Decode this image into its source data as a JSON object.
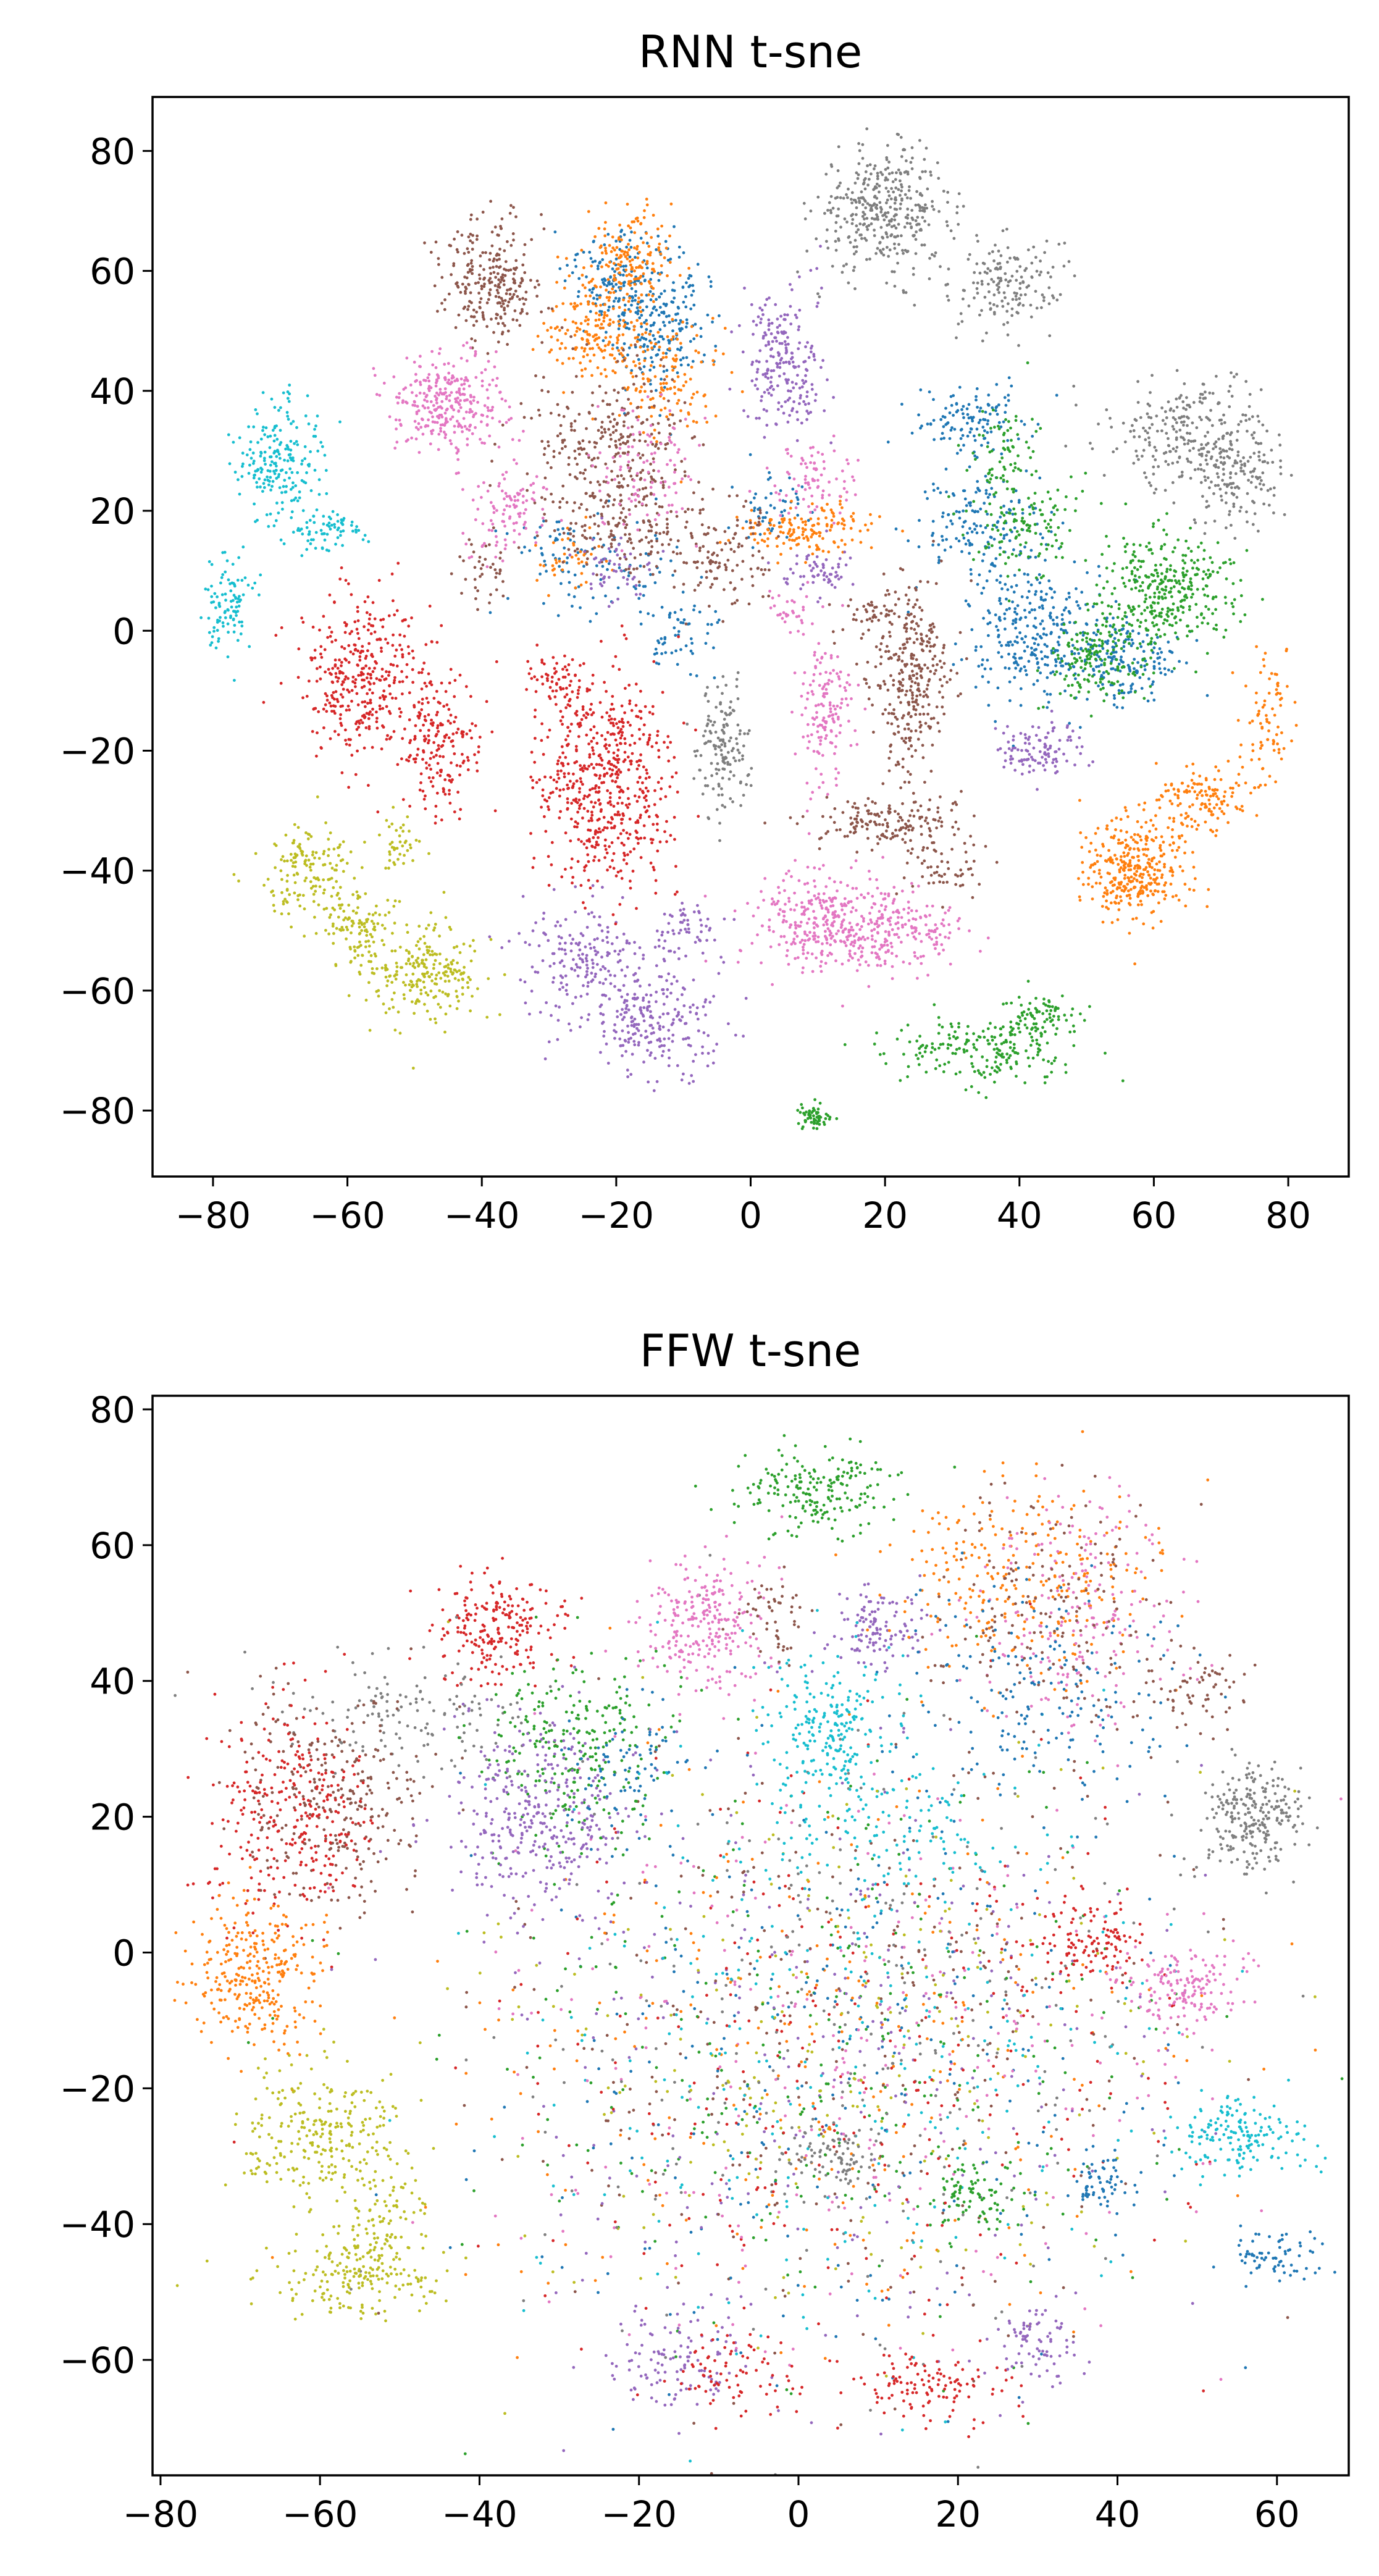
{
  "chart_data": [
    {
      "type": "scatter",
      "title": "RNN t-sne",
      "xlim": [
        -89,
        89
      ],
      "ylim": [
        -91,
        89
      ],
      "xticks": [
        -80,
        -60,
        -40,
        -20,
        0,
        20,
        40,
        60,
        80
      ],
      "yticks": [
        -80,
        -60,
        -40,
        -20,
        0,
        20,
        40,
        60,
        80
      ],
      "xtick_labels": [
        "−80",
        "−60",
        "−40",
        "−20",
        "0",
        "20",
        "40",
        "60",
        "80"
      ],
      "ytick_labels": [
        "−80",
        "−60",
        "−40",
        "−20",
        "0",
        "20",
        "40",
        "60",
        "80"
      ],
      "grid": false,
      "legend": "none",
      "marker_size_px": 2.4,
      "clusters": [
        {
          "color": "#7f7f7f",
          "cx": 20,
          "cy": 70,
          "sx": 5,
          "sy": 5,
          "n": 380
        },
        {
          "color": "#7f7f7f",
          "cx": 38,
          "cy": 58,
          "sx": 4,
          "sy": 4,
          "n": 160
        },
        {
          "color": "#7f7f7f",
          "cx": 66,
          "cy": 33,
          "sx": 6,
          "sy": 5,
          "n": 270
        },
        {
          "color": "#7f7f7f",
          "cx": 73,
          "cy": 25,
          "sx": 3,
          "sy": 4,
          "n": 120
        },
        {
          "color": "#7f7f7f",
          "cx": -4,
          "cy": -20,
          "sx": 2,
          "sy": 5,
          "n": 150
        },
        {
          "color": "#1f77b4",
          "cx": -20,
          "cy": 58,
          "sx": 4,
          "sy": 5,
          "n": 160
        },
        {
          "color": "#1f77b4",
          "cx": -13,
          "cy": 52,
          "sx": 4,
          "sy": 6,
          "n": 200
        },
        {
          "color": "#1f77b4",
          "cx": 33,
          "cy": 35,
          "sx": 4,
          "sy": 3,
          "n": 120
        },
        {
          "color": "#1f77b4",
          "cx": 34,
          "cy": 18,
          "sx": 5,
          "sy": 4,
          "n": 150
        },
        {
          "color": "#1f77b4",
          "cx": 42,
          "cy": 0,
          "sx": 5,
          "sy": 6,
          "n": 300
        },
        {
          "color": "#1f77b4",
          "cx": 56,
          "cy": -5,
          "sx": 4,
          "sy": 3,
          "n": 160
        },
        {
          "color": "#1f77b4",
          "cx": -22,
          "cy": 10,
          "sx": 6,
          "sy": 5,
          "n": 80
        },
        {
          "color": "#1f77b4",
          "cx": -10,
          "cy": 0,
          "sx": 3,
          "sy": 3,
          "n": 60
        },
        {
          "color": "#1f77b4",
          "cx": 2,
          "cy": 20,
          "sx": 3,
          "sy": 3,
          "n": 50
        },
        {
          "color": "#1f77b4",
          "cx": -30,
          "cy": 15,
          "sx": 3,
          "sy": 3,
          "n": 30
        },
        {
          "color": "#ff7f0e",
          "cx": -18,
          "cy": 62,
          "sx": 3,
          "sy": 4,
          "n": 150
        },
        {
          "color": "#ff7f0e",
          "cx": -22,
          "cy": 50,
          "sx": 4,
          "sy": 5,
          "n": 200
        },
        {
          "color": "#ff7f0e",
          "cx": -12,
          "cy": 42,
          "sx": 4,
          "sy": 5,
          "n": 120
        },
        {
          "color": "#ff7f0e",
          "cx": 8,
          "cy": 17,
          "sx": 5,
          "sy": 2,
          "n": 150
        },
        {
          "color": "#ff7f0e",
          "cx": -27,
          "cy": 12,
          "sx": 3,
          "sy": 3,
          "n": 40
        },
        {
          "color": "#ff7f0e",
          "cx": 57,
          "cy": -40,
          "sx": 4,
          "sy": 4,
          "n": 350
        },
        {
          "color": "#ff7f0e",
          "cx": 68,
          "cy": -28,
          "sx": 4,
          "sy": 3,
          "n": 140
        },
        {
          "color": "#ff7f0e",
          "cx": 77,
          "cy": -15,
          "sx": 2,
          "sy": 5,
          "n": 80
        },
        {
          "color": "#8c564b",
          "cx": -38,
          "cy": 58,
          "sx": 4,
          "sy": 5,
          "n": 260
        },
        {
          "color": "#8c564b",
          "cx": -22,
          "cy": 32,
          "sx": 6,
          "sy": 6,
          "n": 250
        },
        {
          "color": "#8c564b",
          "cx": -18,
          "cy": 18,
          "sx": 5,
          "sy": 5,
          "n": 180
        },
        {
          "color": "#8c564b",
          "cx": -5,
          "cy": 12,
          "sx": 4,
          "sy": 5,
          "n": 120
        },
        {
          "color": "#8c564b",
          "cx": -40,
          "cy": 10,
          "sx": 2,
          "sy": 3,
          "n": 40
        },
        {
          "color": "#8c564b",
          "cx": 24,
          "cy": -8,
          "sx": 3,
          "sy": 8,
          "n": 320
        },
        {
          "color": "#8c564b",
          "cx": 18,
          "cy": 2,
          "sx": 3,
          "sy": 2,
          "n": 40
        },
        {
          "color": "#8c564b",
          "cx": 20,
          "cy": -32,
          "sx": 6,
          "sy": 2,
          "n": 160
        },
        {
          "color": "#8c564b",
          "cx": 29,
          "cy": -39,
          "sx": 3,
          "sy": 3,
          "n": 60
        },
        {
          "color": "#9467bd",
          "cx": 5,
          "cy": 45,
          "sx": 3,
          "sy": 6,
          "n": 220
        },
        {
          "color": "#9467bd",
          "cx": -25,
          "cy": -55,
          "sx": 5,
          "sy": 5,
          "n": 180
        },
        {
          "color": "#9467bd",
          "cx": -15,
          "cy": -65,
          "sx": 5,
          "sy": 5,
          "n": 240
        },
        {
          "color": "#9467bd",
          "cx": -10,
          "cy": -50,
          "sx": 3,
          "sy": 3,
          "n": 60
        },
        {
          "color": "#9467bd",
          "cx": 43,
          "cy": -20,
          "sx": 3,
          "sy": 2,
          "n": 110
        },
        {
          "color": "#9467bd",
          "cx": 10,
          "cy": 10,
          "sx": 3,
          "sy": 2,
          "n": 60
        },
        {
          "color": "#9467bd",
          "cx": -20,
          "cy": 10,
          "sx": 3,
          "sy": 3,
          "n": 50
        },
        {
          "color": "#e377c2",
          "cx": -45,
          "cy": 38,
          "sx": 4,
          "sy": 4,
          "n": 300
        },
        {
          "color": "#e377c2",
          "cx": -36,
          "cy": 20,
          "sx": 3,
          "sy": 4,
          "n": 100
        },
        {
          "color": "#e377c2",
          "cx": -16,
          "cy": 28,
          "sx": 4,
          "sy": 5,
          "n": 100
        },
        {
          "color": "#e377c2",
          "cx": 9,
          "cy": 25,
          "sx": 3,
          "sy": 3,
          "n": 80
        },
        {
          "color": "#e377c2",
          "cx": 11,
          "cy": -14,
          "sx": 2,
          "sy": 6,
          "n": 150
        },
        {
          "color": "#e377c2",
          "cx": 12,
          "cy": -49,
          "sx": 6,
          "sy": 4,
          "n": 380
        },
        {
          "color": "#e377c2",
          "cx": 24,
          "cy": -50,
          "sx": 4,
          "sy": 3,
          "n": 120
        },
        {
          "color": "#e377c2",
          "cx": 6,
          "cy": 3,
          "sx": 2,
          "sy": 2,
          "n": 30
        },
        {
          "color": "#2ca02c",
          "cx": 37,
          "cy": 30,
          "sx": 3,
          "sy": 4,
          "n": 70
        },
        {
          "color": "#2ca02c",
          "cx": 41,
          "cy": 17,
          "sx": 4,
          "sy": 4,
          "n": 120
        },
        {
          "color": "#2ca02c",
          "cx": 62,
          "cy": 7,
          "sx": 5,
          "sy": 5,
          "n": 350
        },
        {
          "color": "#2ca02c",
          "cx": 52,
          "cy": -5,
          "sx": 4,
          "sy": 4,
          "n": 160
        },
        {
          "color": "#2ca02c",
          "cx": 35,
          "cy": -70,
          "sx": 7,
          "sy": 3,
          "n": 200
        },
        {
          "color": "#2ca02c",
          "cx": 43,
          "cy": -64,
          "sx": 3,
          "sy": 2,
          "n": 80
        },
        {
          "color": "#2ca02c",
          "cx": 9,
          "cy": -81,
          "sx": 1.5,
          "sy": 1.2,
          "n": 60
        },
        {
          "color": "#17becf",
          "cx": -70,
          "cy": 28,
          "sx": 3,
          "sy": 5,
          "n": 200
        },
        {
          "color": "#17becf",
          "cx": -63,
          "cy": 17,
          "sx": 3,
          "sy": 2,
          "n": 80
        },
        {
          "color": "#17becf",
          "cx": -78,
          "cy": 4,
          "sx": 2,
          "sy": 4,
          "n": 100
        },
        {
          "color": "#d62728",
          "cx": -57,
          "cy": -8,
          "sx": 5,
          "sy": 7,
          "n": 380
        },
        {
          "color": "#d62728",
          "cx": -46,
          "cy": -20,
          "sx": 3,
          "sy": 6,
          "n": 170
        },
        {
          "color": "#d62728",
          "cx": -22,
          "cy": -25,
          "sx": 5,
          "sy": 9,
          "n": 580
        },
        {
          "color": "#d62728",
          "cx": -28,
          "cy": -7,
          "sx": 3,
          "sy": 2,
          "n": 50
        },
        {
          "color": "#bcbd22",
          "cx": -66,
          "cy": -40,
          "sx": 4,
          "sy": 4,
          "n": 160
        },
        {
          "color": "#bcbd22",
          "cx": -58,
          "cy": -50,
          "sx": 3,
          "sy": 3,
          "n": 110
        },
        {
          "color": "#bcbd22",
          "cx": -48,
          "cy": -57,
          "sx": 4,
          "sy": 4,
          "n": 230
        },
        {
          "color": "#bcbd22",
          "cx": -52,
          "cy": -36,
          "sx": 2,
          "sy": 2,
          "n": 40
        }
      ]
    },
    {
      "type": "scatter",
      "title": "FFW t-sne",
      "xlim": [
        -81,
        69
      ],
      "ylim": [
        -77,
        82
      ],
      "xticks": [
        -80,
        -60,
        -40,
        -20,
        0,
        20,
        40,
        60
      ],
      "yticks": [
        -60,
        -40,
        -20,
        0,
        20,
        40,
        60,
        80
      ],
      "xtick_labels": [
        "−80",
        "−60",
        "−40",
        "−20",
        "0",
        "20",
        "40",
        "60"
      ],
      "ytick_labels": [
        "−60",
        "−40",
        "−20",
        "0",
        "20",
        "40",
        "60",
        "80"
      ],
      "grid": false,
      "legend": "none",
      "marker_size_px": 2.4,
      "background_noise": {
        "cx": 5,
        "cy": -15,
        "sx": 22,
        "sy": 22,
        "n": 2600,
        "colors": [
          "#1f77b4",
          "#ff7f0e",
          "#2ca02c",
          "#d62728",
          "#9467bd",
          "#8c564b",
          "#e377c2",
          "#7f7f7f",
          "#bcbd22",
          "#17becf"
        ]
      },
      "clusters": [
        {
          "color": "#2ca02c",
          "cx": 2,
          "cy": 68,
          "sx": 5,
          "sy": 3,
          "n": 200
        },
        {
          "color": "#d62728",
          "cx": -38,
          "cy": 48,
          "sx": 4,
          "sy": 4,
          "n": 220
        },
        {
          "color": "#e377c2",
          "cx": -12,
          "cy": 48,
          "sx": 4,
          "sy": 5,
          "n": 260
        },
        {
          "color": "#8c564b",
          "cx": -3,
          "cy": 50,
          "sx": 2,
          "sy": 3,
          "n": 50
        },
        {
          "color": "#9467bd",
          "cx": 10,
          "cy": 48,
          "sx": 3,
          "sy": 3,
          "n": 120
        },
        {
          "color": "#ff7f0e",
          "cx": 28,
          "cy": 55,
          "sx": 8,
          "sy": 7,
          "n": 280
        },
        {
          "color": "#e377c2",
          "cx": 36,
          "cy": 50,
          "sx": 6,
          "sy": 9,
          "n": 200
        },
        {
          "color": "#8c564b",
          "cx": 32,
          "cy": 50,
          "sx": 8,
          "sy": 10,
          "n": 180
        },
        {
          "color": "#1f77b4",
          "cx": 30,
          "cy": 38,
          "sx": 8,
          "sy": 8,
          "n": 180
        },
        {
          "color": "#8c564b",
          "cx": 50,
          "cy": 38,
          "sx": 3,
          "sy": 3,
          "n": 60
        },
        {
          "color": "#7f7f7f",
          "cx": -48,
          "cy": 35,
          "sx": 8,
          "sy": 4,
          "n": 140
        },
        {
          "color": "#8c564b",
          "cx": -58,
          "cy": 22,
          "sx": 6,
          "sy": 8,
          "n": 280
        },
        {
          "color": "#d62728",
          "cx": -64,
          "cy": 20,
          "sx": 5,
          "sy": 8,
          "n": 300
        },
        {
          "color": "#2ca02c",
          "cx": -28,
          "cy": 30,
          "sx": 6,
          "sy": 7,
          "n": 250
        },
        {
          "color": "#9467bd",
          "cx": -32,
          "cy": 20,
          "sx": 6,
          "sy": 7,
          "n": 350
        },
        {
          "color": "#1f77b4",
          "cx": -22,
          "cy": 28,
          "sx": 4,
          "sy": 5,
          "n": 80
        },
        {
          "color": "#17becf",
          "cx": 4,
          "cy": 33,
          "sx": 4,
          "sy": 5,
          "n": 220
        },
        {
          "color": "#17becf",
          "cx": 10,
          "cy": 18,
          "sx": 8,
          "sy": 5,
          "n": 120
        },
        {
          "color": "#7f7f7f",
          "cx": 57,
          "cy": 20,
          "sx": 3,
          "sy": 4,
          "n": 240
        },
        {
          "color": "#ff7f0e",
          "cx": -68,
          "cy": -4,
          "sx": 4,
          "sy": 5,
          "n": 300
        },
        {
          "color": "#bcbd22",
          "cx": -60,
          "cy": -27,
          "sx": 5,
          "sy": 5,
          "n": 260
        },
        {
          "color": "#bcbd22",
          "cx": -52,
          "cy": -40,
          "sx": 3,
          "sy": 4,
          "n": 100
        },
        {
          "color": "#bcbd22",
          "cx": -56,
          "cy": -48,
          "sx": 6,
          "sy": 3,
          "n": 170
        },
        {
          "color": "#d62728",
          "cx": 36,
          "cy": 2,
          "sx": 4,
          "sy": 3,
          "n": 120
        },
        {
          "color": "#e377c2",
          "cx": 48,
          "cy": -5,
          "sx": 4,
          "sy": 3,
          "n": 160
        },
        {
          "color": "#17becf",
          "cx": 55,
          "cy": -27,
          "sx": 4,
          "sy": 3,
          "n": 160
        },
        {
          "color": "#1f77b4",
          "cx": 60,
          "cy": -45,
          "sx": 3,
          "sy": 2,
          "n": 70
        },
        {
          "color": "#1f77b4",
          "cx": 38,
          "cy": -34,
          "sx": 2,
          "sy": 2,
          "n": 60
        },
        {
          "color": "#2ca02c",
          "cx": 22,
          "cy": -36,
          "sx": 3,
          "sy": 3,
          "n": 90
        },
        {
          "color": "#d62728",
          "cx": 16,
          "cy": -64,
          "sx": 5,
          "sy": 3,
          "n": 120
        },
        {
          "color": "#9467bd",
          "cx": 30,
          "cy": -58,
          "sx": 3,
          "sy": 3,
          "n": 80
        },
        {
          "color": "#9467bd",
          "cx": -15,
          "cy": -60,
          "sx": 4,
          "sy": 4,
          "n": 120
        },
        {
          "color": "#d62728",
          "cx": -8,
          "cy": -62,
          "sx": 5,
          "sy": 3,
          "n": 80
        },
        {
          "color": "#7f7f7f",
          "cx": 5,
          "cy": -30,
          "sx": 3,
          "sy": 2,
          "n": 80
        }
      ]
    }
  ]
}
